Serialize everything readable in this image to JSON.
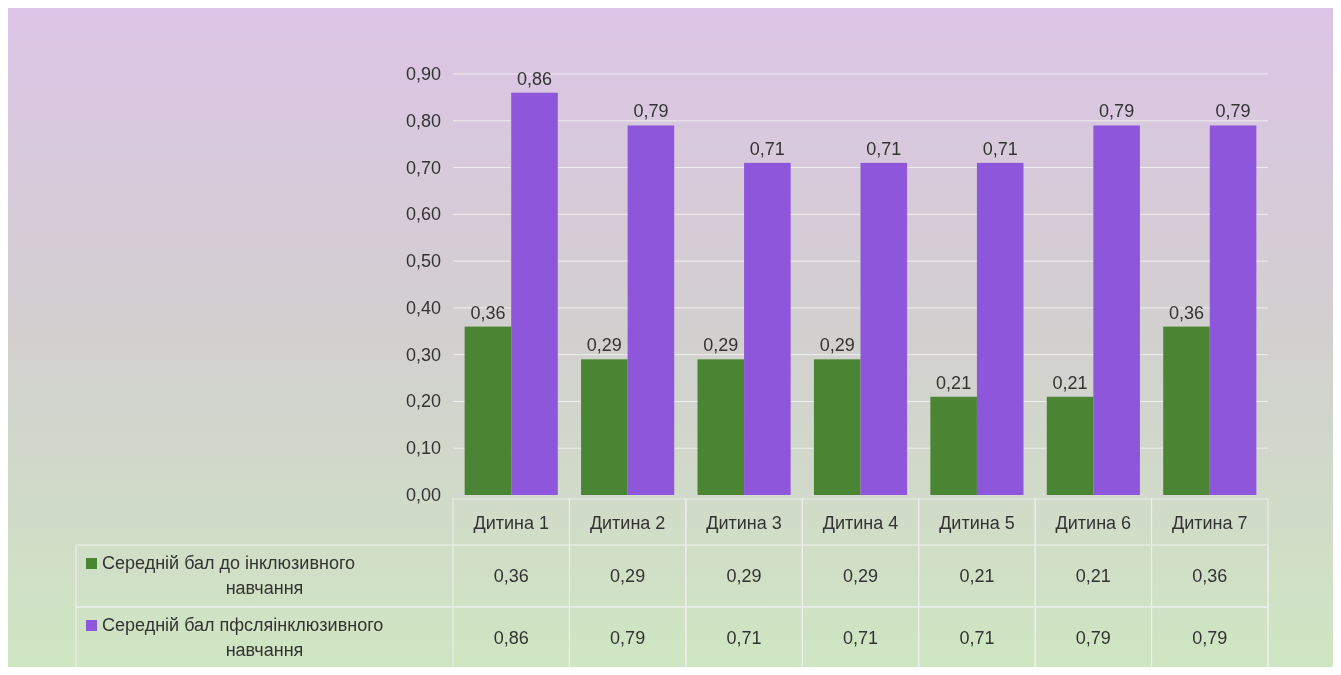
{
  "chart_data": {
    "type": "bar",
    "categories": [
      "Дитина 1",
      "Дитина 2",
      "Дитина 3",
      "Дитина 4",
      "Дитина 5",
      "Дитина 6",
      "Дитина 7"
    ],
    "series": [
      {
        "name": "Середній бал до інклюзивного навчання",
        "color": "#4a8534",
        "values": [
          0.36,
          0.29,
          0.29,
          0.29,
          0.21,
          0.21,
          0.36
        ],
        "value_labels": [
          "0,36",
          "0,29",
          "0,29",
          "0,29",
          "0,21",
          "0,21",
          "0,36"
        ]
      },
      {
        "name": "Середній бал пфсляінклюзивного навчання",
        "color": "#8e56db",
        "values": [
          0.86,
          0.79,
          0.71,
          0.71,
          0.71,
          0.79,
          0.79
        ],
        "value_labels": [
          "0,86",
          "0,79",
          "0,71",
          "0,71",
          "0,71",
          "0,79",
          "0,79"
        ]
      }
    ],
    "ylim": [
      0,
      0.9
    ],
    "yticks": [
      {
        "value": 0,
        "label": "0,00"
      },
      {
        "value": 0.1,
        "label": "0,10"
      },
      {
        "value": 0.2,
        "label": "0,20"
      },
      {
        "value": 0.3,
        "label": "0,30"
      },
      {
        "value": 0.4,
        "label": "0,40"
      },
      {
        "value": 0.5,
        "label": "0,50"
      },
      {
        "value": 0.6,
        "label": "0,60"
      },
      {
        "value": 0.7,
        "label": "0,70"
      },
      {
        "value": 0.8,
        "label": "0,80"
      },
      {
        "value": 0.9,
        "label": "0,90"
      }
    ],
    "grid": "y",
    "legend": "bottom left"
  }
}
